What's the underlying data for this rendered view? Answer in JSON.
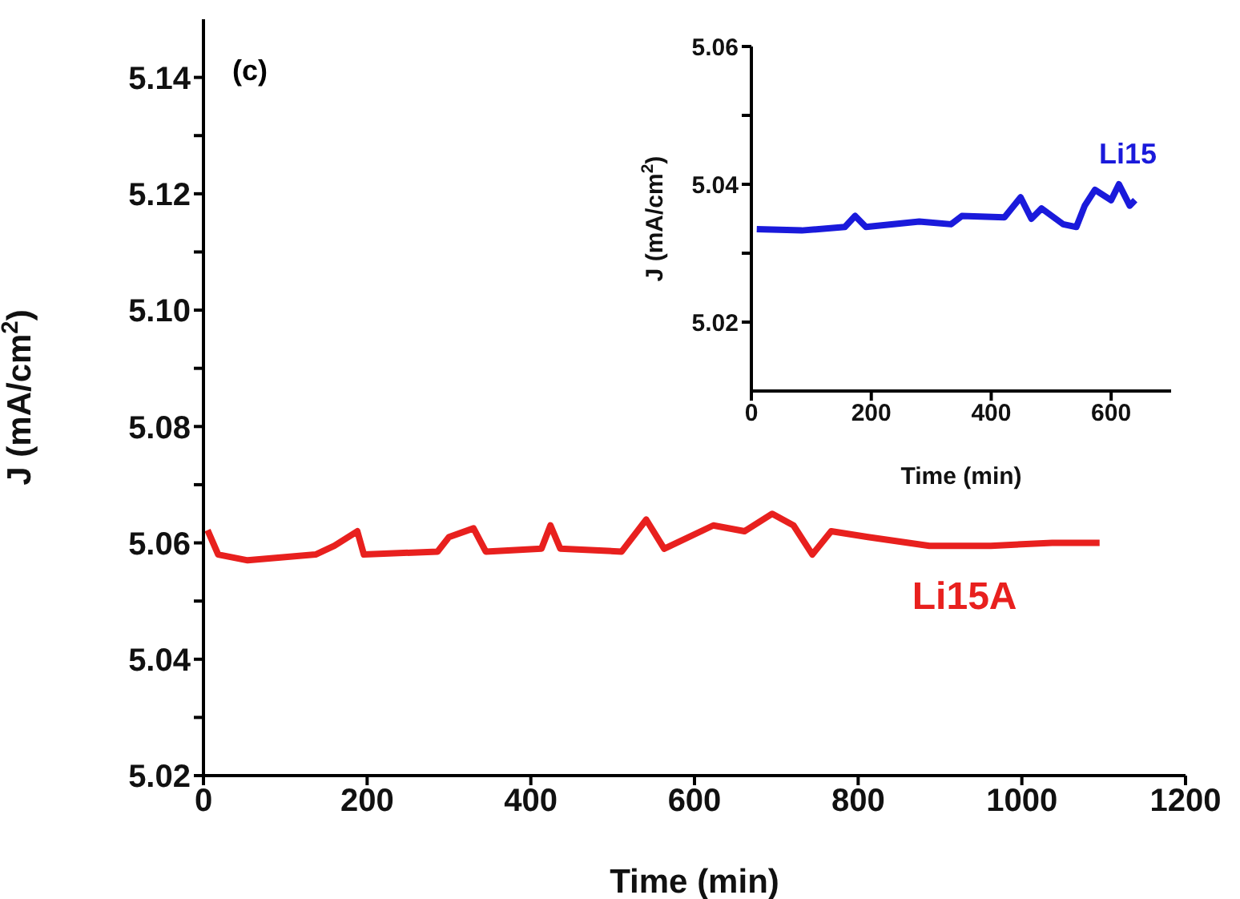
{
  "chart_data": [
    {
      "type": "line",
      "xlabel": "Time (min)",
      "ylabel": "J (mA/cm$^{2}$)",
      "annotations": [
        "(c)"
      ],
      "xlim": [
        0,
        1200
      ],
      "xticks": [
        0,
        200,
        400,
        600,
        800,
        1000,
        1200
      ],
      "ylim": [
        5.02,
        5.15
      ],
      "yticks": [
        5.02,
        {
          "value": 5.03,
          "label": null
        },
        5.04,
        {
          "value": 5.05,
          "label": null
        },
        5.06,
        {
          "value": 5.07,
          "label": null
        },
        5.08,
        {
          "value": 5.09,
          "label": null
        },
        {
          "value": 5.1,
          "label": "5.10"
        },
        {
          "value": 5.11,
          "label": null
        },
        5.12,
        {
          "value": 5.13,
          "label": null
        },
        5.14
      ],
      "series": [
        {
          "name": "Li15A",
          "color": "#e8201e",
          "x": [
            5,
            18,
            54,
            137,
            160,
            188,
            196,
            286,
            300,
            330,
            345,
            413,
            424,
            436,
            511,
            541,
            563,
            623,
            661,
            695,
            721,
            744,
            767,
            812,
            887,
            962,
            1037,
            1095
          ],
          "values": [
            5.0622,
            5.058,
            5.057,
            5.058,
            5.0595,
            5.062,
            5.058,
            5.0585,
            5.061,
            5.0625,
            5.0585,
            5.059,
            5.063,
            5.059,
            5.0585,
            5.064,
            5.059,
            5.063,
            5.062,
            5.065,
            5.063,
            5.058,
            5.062,
            5.061,
            5.0595,
            5.0595,
            5.06,
            5.06
          ]
        }
      ]
    },
    {
      "type": "line",
      "xlabel": "Time (min)",
      "ylabel": "J (mA/cm$^{2}$)",
      "xlim": [
        0,
        700
      ],
      "xticks": [
        0,
        200,
        400,
        600
      ],
      "ylim": [
        5.01,
        5.06
      ],
      "yticks": [
        5.02,
        {
          "value": 5.03,
          "label": null
        },
        5.04,
        {
          "value": 5.05,
          "label": null
        },
        5.06
      ],
      "series": [
        {
          "name": "Li15",
          "color": "#1a1adb",
          "x": [
            9,
            84,
            156,
            173,
            191,
            280,
            333,
            351,
            422,
            449,
            467,
            484,
            520,
            542,
            556,
            573,
            600,
            613,
            631,
            640
          ],
          "values": [
            5.0335,
            5.0333,
            5.0338,
            5.0354,
            5.0338,
            5.0346,
            5.0342,
            5.0354,
            5.0352,
            5.0381,
            5.035,
            5.0365,
            5.0342,
            5.0338,
            5.0369,
            5.0392,
            5.0377,
            5.04,
            5.0369,
            5.0377
          ]
        }
      ]
    }
  ]
}
